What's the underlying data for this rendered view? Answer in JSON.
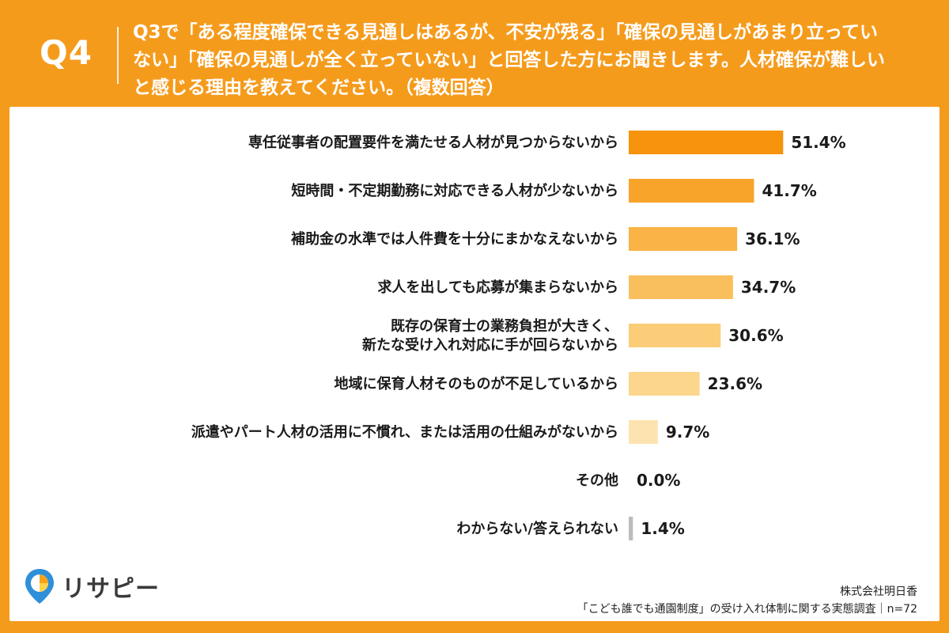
{
  "header": {
    "badge": "Q4",
    "question": "Q3で「ある程度確保できる見通しはあるが、不安が残る」「確保の見通しがあまり立っていない」「確保の見通しが全く立っていない」と回答した方にお聞きします。人材確保が難しいと感じる理由を教えてください。（複数回答）"
  },
  "chart_data": {
    "type": "bar",
    "orientation": "horizontal",
    "categories": [
      "専任従事者の配置要件を満たせる人材が見つからないから",
      "短時間・不定期勤務に対応できる人材が少ないから",
      "補助金の水準では人件費を十分にまかなえないから",
      "求人を出しても応募が集まらないから",
      "既存の保育士の業務負担が大きく、\n新たな受け入れ対応に手が回らないから",
      "地域に保育人材そのものが不足しているから",
      "派遣やパート人材の活用に不慣れ、または活用の仕組みがないから",
      "その他",
      "わからない/答えられない"
    ],
    "values": [
      51.4,
      41.7,
      36.1,
      34.7,
      30.6,
      23.6,
      9.7,
      0.0,
      1.4
    ],
    "value_labels": [
      "51.4%",
      "41.7%",
      "36.1%",
      "34.7%",
      "30.6%",
      "23.6%",
      "9.7%",
      "0.0%",
      "1.4%"
    ],
    "bar_colors": [
      "#f7930d",
      "#f8a42a",
      "#f9b347",
      "#fabf5d",
      "#fbcd78",
      "#fcd68d",
      "#fde3b0",
      "#fde3b0",
      "#bdbdbd"
    ],
    "unit": "%",
    "xlim": [
      0,
      100
    ],
    "grid": false,
    "legend": "none"
  },
  "footer": {
    "logo_text": "リサピー",
    "company": "株式会社明日香",
    "survey": "「こども誰でも通園制度」の受け入れ体制に関する実態調査｜n=72"
  }
}
